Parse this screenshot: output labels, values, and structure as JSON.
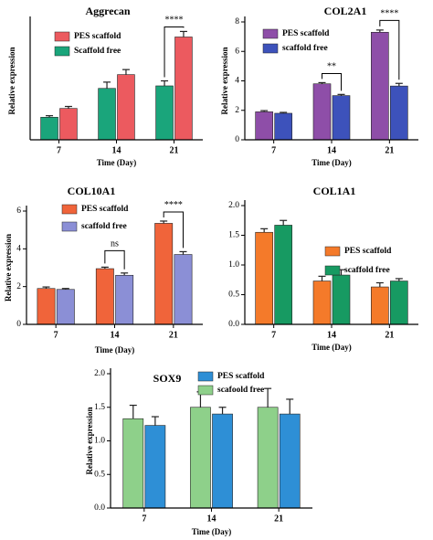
{
  "chart_data": [
    {
      "type": "bar",
      "title": "Aggrecan",
      "xlabel": "Time (Day)",
      "ylabel": "Relative expression",
      "categories": [
        "7",
        "14",
        "21"
      ],
      "ylim": [
        0,
        4.7
      ],
      "yticks": [],
      "legend_position": "top-left",
      "series": [
        {
          "name": "Scaffold free",
          "color": "#1aa57b",
          "values": [
            0.9,
            2.05,
            2.15
          ],
          "errors": [
            0.06,
            0.25,
            0.2
          ]
        },
        {
          "name": "PES scaffold",
          "color": "#ec5a5f",
          "values": [
            1.25,
            2.6,
            4.1
          ],
          "errors": [
            0.08,
            0.2,
            0.22
          ]
        }
      ],
      "legend_order": [
        1,
        0
      ],
      "annotations": [
        {
          "text": "****",
          "category": 2,
          "y": 4.5,
          "bracket": true
        }
      ]
    },
    {
      "type": "bar",
      "title": "COL2A1",
      "xlabel": "Time (Day)",
      "ylabel": "Relative expression",
      "categories": [
        "7",
        "14",
        "21"
      ],
      "ylim": [
        0,
        8
      ],
      "yticks": [
        0,
        2,
        4,
        6,
        8
      ],
      "legend_position": "top-left",
      "series": [
        {
          "name": "PES scaffold",
          "color": "#8e4ea8",
          "values": [
            1.9,
            3.8,
            7.3
          ],
          "errors": [
            0.08,
            0.08,
            0.15
          ]
        },
        {
          "name": "scaffold free",
          "color": "#3d52bb",
          "values": [
            1.8,
            3.0,
            3.65
          ],
          "errors": [
            0.06,
            0.08,
            0.18
          ]
        }
      ],
      "legend_order": [
        0,
        1
      ],
      "annotations": [
        {
          "text": "**",
          "category": 1,
          "y": 4.5,
          "bracket": true
        },
        {
          "text": "****",
          "category": 2,
          "y": 8.1,
          "bracket": true
        }
      ]
    },
    {
      "type": "bar",
      "title": "COL10A1",
      "xlabel": "Time (Day)",
      "ylabel": "Relative expression",
      "categories": [
        "7",
        "14",
        "21"
      ],
      "ylim": [
        0,
        6
      ],
      "yticks": [
        0,
        2,
        4,
        6
      ],
      "legend_position": "top-left",
      "series": [
        {
          "name": "PES scaffold",
          "color": "#f0643a",
          "values": [
            1.9,
            2.95,
            5.35
          ],
          "errors": [
            0.08,
            0.08,
            0.12
          ]
        },
        {
          "name": "scaffold free",
          "color": "#8b8fd6",
          "values": [
            1.85,
            2.6,
            3.7
          ],
          "errors": [
            0.05,
            0.12,
            0.15
          ]
        }
      ],
      "legend_order": [
        0,
        1
      ],
      "annotations": [
        {
          "text": "ns",
          "category": 1,
          "y": 3.9,
          "bracket": true
        },
        {
          "text": "****",
          "category": 2,
          "y": 5.95,
          "bracket": true
        }
      ]
    },
    {
      "type": "bar",
      "title": "COL1A1",
      "xlabel": "Time (Day)",
      "ylabel": "",
      "categories": [
        "7",
        "14",
        "21"
      ],
      "ylim": [
        0,
        2.0
      ],
      "yticks": [
        0.0,
        0.5,
        1.0,
        1.5,
        2.0
      ],
      "legend_position": "right",
      "series": [
        {
          "name": "PES scaffold",
          "color": "#f47a2a",
          "values": [
            1.55,
            0.73,
            0.63
          ],
          "errors": [
            0.06,
            0.08,
            0.07
          ]
        },
        {
          "name": "scaffold free",
          "color": "#179a62",
          "values": [
            1.67,
            0.83,
            0.73
          ],
          "errors": [
            0.08,
            0.09,
            0.04
          ]
        }
      ],
      "legend_order": [
        0,
        1
      ],
      "annotations": []
    },
    {
      "type": "bar",
      "title": "SOX9",
      "xlabel": "Time (Day)",
      "ylabel": "Relative expression",
      "categories": [
        "7",
        "14",
        "21"
      ],
      "ylim": [
        0,
        2.0
      ],
      "yticks": [
        0.0,
        0.5,
        1.0,
        1.5,
        2.0
      ],
      "legend_position": "top",
      "series": [
        {
          "name": "scafoold free",
          "color": "#8ed08a",
          "values": [
            1.33,
            1.5,
            1.5
          ],
          "errors": [
            0.2,
            0.23,
            0.28
          ]
        },
        {
          "name": "PES scaffold",
          "color": "#2e8fd6",
          "values": [
            1.23,
            1.4,
            1.4
          ],
          "errors": [
            0.13,
            0.1,
            0.22
          ]
        }
      ],
      "legend_order": [
        1,
        0
      ],
      "annotations": []
    }
  ]
}
